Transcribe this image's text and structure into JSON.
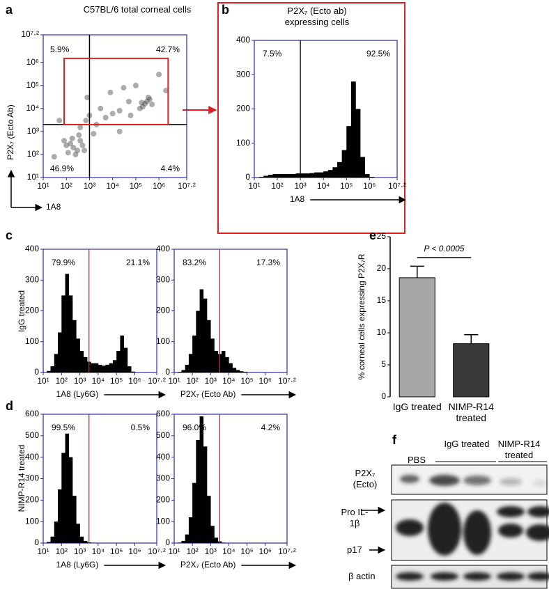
{
  "chart_data": [
    {
      "type": "scatter",
      "panel": "a",
      "title": "C57BL/6 total corneal cells",
      "xlabel": "1A8",
      "ylabel": "P2X₇ (Ecto Ab)",
      "x": [
        200,
        150,
        300,
        100,
        400,
        250,
        500,
        120,
        180,
        350,
        80,
        600,
        250000,
        300000,
        200000,
        400000,
        150000,
        350000,
        180000,
        500000,
        2000,
        5000,
        10000,
        20000,
        1000,
        3000,
        50000,
        8000,
        30000,
        100000,
        700,
        1500,
        400,
        60000,
        2000000,
        1000000,
        50,
        30,
        20000,
        800
      ],
      "y": [
        200,
        300,
        150,
        250,
        400,
        100,
        250,
        120,
        500,
        700,
        400,
        150,
        16000,
        20000,
        12000,
        25000,
        10000,
        30000,
        18000,
        15000,
        2000,
        4000,
        6000,
        8000,
        5000,
        10000,
        20000,
        50000,
        80000,
        100000,
        3000,
        800,
        1500,
        5000,
        60000,
        300000,
        3000,
        80,
        1000,
        30000
      ],
      "color": "#444444",
      "xscale": "log",
      "yscale": "log",
      "xlim": [
        10,
        15848932
      ],
      "ylim": [
        10,
        15848932
      ],
      "xticks": [
        {
          "value": 10,
          "label": "10¹"
        },
        {
          "value": 100,
          "label": "10²"
        },
        {
          "value": 1000,
          "label": "10³"
        },
        {
          "value": 10000,
          "label": "10⁴"
        },
        {
          "value": 100000,
          "label": "10⁵"
        },
        {
          "value": 1000000,
          "label": "10⁶"
        },
        {
          "value": 15848932,
          "label": "10⁷·²"
        }
      ],
      "yticks": [
        {
          "value": 10,
          "label": "10¹"
        },
        {
          "value": 100,
          "label": "10²"
        },
        {
          "value": 1000,
          "label": "10³"
        },
        {
          "value": 10000,
          "label": "10⁴"
        },
        {
          "value": 100000,
          "label": "10⁵"
        },
        {
          "value": 1000000,
          "label": "10⁶"
        },
        {
          "value": 15848932,
          "label": "10⁷·²"
        }
      ],
      "gates": {
        "x": 1000,
        "y": 2000,
        "color": "#000000"
      },
      "gate_box": {
        "x": [
          80,
          2500000
        ],
        "y": [
          2000,
          1500000
        ],
        "color": "#e02020"
      },
      "annotations": [
        "5.9%",
        "42.7%",
        "46.9%",
        "4.4%"
      ]
    },
    {
      "type": "histogram",
      "panel": "b",
      "title": "P2X₇ (Ecto ab) expressing cells",
      "xlabel": "1A8",
      "xscale": "log",
      "bins": [
        10,
        15.85,
        25.12,
        39.81,
        63.1,
        100,
        158.5,
        251.2,
        398.1,
        631,
        1000,
        1585,
        2512,
        3981,
        6310,
        10000,
        15849,
        25119,
        39811,
        63096,
        100000,
        158489,
        251189,
        398107,
        630957,
        1000000,
        1584893,
        2511886,
        3981072,
        6309573,
        10000000,
        15848932
      ],
      "values": [
        0,
        2,
        5,
        8,
        10,
        10,
        10,
        10,
        10,
        12,
        12,
        12,
        13,
        15,
        15,
        18,
        22,
        30,
        45,
        80,
        150,
        280,
        200,
        60,
        10,
        2,
        0,
        0,
        0,
        0,
        0
      ],
      "color": "#000000",
      "xlim": [
        10,
        15848932
      ],
      "ylim": [
        0,
        400
      ],
      "yticks": [
        0,
        100,
        200,
        300,
        400
      ],
      "xticks": [
        {
          "value": 10,
          "label": "10¹"
        },
        {
          "value": 100,
          "label": "10²"
        },
        {
          "value": 1000,
          "label": "10³"
        },
        {
          "value": 10000,
          "label": "10⁴"
        },
        {
          "value": 100000,
          "label": "10⁵"
        },
        {
          "value": 1000000,
          "label": "10⁶"
        },
        {
          "value": 15848932,
          "label": "10⁷·²"
        }
      ],
      "gate": 1000,
      "gate_color": "#000000",
      "annotations": [
        "7.5%",
        "92.5%"
      ]
    },
    {
      "type": "histogram",
      "panel": "c",
      "ylabel": "IgG treated",
      "xlabel": "1A8 (Ly6G)",
      "xscale": "log",
      "bins": [
        10,
        15.85,
        25.12,
        39.81,
        63.1,
        100,
        158.5,
        251.2,
        398.1,
        631,
        1000,
        1585,
        2512,
        3981,
        6310,
        10000,
        15849,
        25119,
        39811,
        63096,
        100000,
        158489,
        251189,
        398107,
        630957,
        1000000,
        1584893,
        2511886,
        3981072,
        6309573,
        10000000,
        15848932
      ],
      "values": [
        0,
        5,
        20,
        60,
        130,
        250,
        320,
        250,
        170,
        110,
        70,
        50,
        35,
        30,
        30,
        25,
        22,
        25,
        30,
        40,
        70,
        120,
        80,
        20,
        3,
        0,
        0,
        0,
        0,
        0,
        0
      ],
      "color": "#000000",
      "xlim": [
        10,
        15848932
      ],
      "ylim": [
        0,
        400
      ],
      "yticks": [
        0,
        100,
        200,
        300,
        400
      ],
      "xticks": [
        {
          "value": 10,
          "label": "10¹"
        },
        {
          "value": 100,
          "label": "10²"
        },
        {
          "value": 1000,
          "label": "10³"
        },
        {
          "value": 10000,
          "label": "10⁴"
        },
        {
          "value": 100000,
          "label": "10⁵"
        },
        {
          "value": 1000000,
          "label": "10⁶"
        },
        {
          "value": 15848932,
          "label": "10⁷·²"
        }
      ],
      "gate": 3162,
      "gate_color": "#e02020",
      "annotations": [
        "79.9%",
        "21.1%"
      ]
    },
    {
      "type": "histogram",
      "xlabel": "P2X₇ (Ecto Ab)",
      "xscale": "log",
      "bins": [
        10,
        15.85,
        25.12,
        39.81,
        63.1,
        100,
        158.5,
        251.2,
        398.1,
        631,
        1000,
        1585,
        2512,
        3981,
        6310,
        10000,
        15849,
        25119,
        39811,
        63096,
        100000,
        158489,
        251189,
        398107,
        630957,
        1000000,
        1584893,
        2511886,
        3981072,
        6309573,
        10000000,
        15848932
      ],
      "values": [
        0,
        2,
        8,
        25,
        60,
        120,
        200,
        270,
        240,
        170,
        110,
        70,
        60,
        70,
        50,
        30,
        15,
        8,
        4,
        2,
        0,
        0,
        0,
        0,
        0,
        0,
        0,
        0,
        0,
        0,
        0
      ],
      "color": "#000000",
      "xlim": [
        10,
        15848932
      ],
      "ylim": [
        0,
        400
      ],
      "yticks": [
        0,
        100,
        200,
        300,
        400
      ],
      "xticks": [
        {
          "value": 10,
          "label": "10¹"
        },
        {
          "value": 100,
          "label": "10²"
        },
        {
          "value": 1000,
          "label": "10³"
        },
        {
          "value": 10000,
          "label": "10⁴"
        },
        {
          "value": 100000,
          "label": "10⁵"
        },
        {
          "value": 1000000,
          "label": "10⁶"
        },
        {
          "value": 15848932,
          "label": "10⁷·²"
        }
      ],
      "gate": 3162,
      "gate_color": "#e02020",
      "annotations": [
        "83.2%",
        "17.3%"
      ]
    },
    {
      "type": "histogram",
      "panel": "d",
      "ylabel": "NIMP-R14 treated",
      "xlabel": "1A8 (Ly6G)",
      "xscale": "log",
      "bins": [
        10,
        15.85,
        25.12,
        39.81,
        63.1,
        100,
        158.5,
        251.2,
        398.1,
        631,
        1000,
        1585,
        2512,
        3981,
        6310,
        10000,
        15849,
        25119,
        39811,
        63096,
        100000,
        158489,
        251189,
        398107,
        630957,
        1000000,
        1584893,
        2511886,
        3981072,
        6309573,
        10000000,
        15848932
      ],
      "values": [
        0,
        5,
        30,
        100,
        250,
        420,
        510,
        400,
        220,
        90,
        30,
        10,
        3,
        1,
        0,
        0,
        0,
        0,
        0,
        0,
        0,
        0,
        0,
        0,
        0,
        0,
        0,
        0,
        0,
        0,
        0
      ],
      "color": "#000000",
      "xlim": [
        10,
        15848932
      ],
      "ylim": [
        0,
        600
      ],
      "yticks": [
        0,
        100,
        200,
        300,
        400,
        500,
        600
      ],
      "xticks": [
        {
          "value": 10,
          "label": "10¹"
        },
        {
          "value": 100,
          "label": "10²"
        },
        {
          "value": 1000,
          "label": "10³"
        },
        {
          "value": 10000,
          "label": "10⁴"
        },
        {
          "value": 100000,
          "label": "10⁵"
        },
        {
          "value": 1000000,
          "label": "10⁶"
        },
        {
          "value": 15848932,
          "label": "10⁷·²"
        }
      ],
      "gate": 3162,
      "gate_color": "#e02020",
      "annotations": [
        "99.5%",
        "0.5%"
      ]
    },
    {
      "type": "histogram",
      "xlabel": "P2X₇ (Ecto Ab)",
      "xscale": "log",
      "bins": [
        10,
        15.85,
        25.12,
        39.81,
        63.1,
        100,
        158.5,
        251.2,
        398.1,
        631,
        1000,
        1585,
        2512,
        3981,
        6310,
        10000,
        15849,
        25119,
        39811,
        63096,
        100000,
        158489,
        251189,
        398107,
        630957,
        1000000,
        1584893,
        2511886,
        3981072,
        6309573,
        10000000,
        15848932
      ],
      "values": [
        0,
        2,
        10,
        40,
        120,
        280,
        480,
        590,
        450,
        220,
        80,
        25,
        8,
        2,
        0,
        0,
        0,
        0,
        0,
        0,
        0,
        0,
        0,
        0,
        0,
        0,
        0,
        0,
        0,
        0,
        0
      ],
      "color": "#000000",
      "xlim": [
        10,
        15848932
      ],
      "ylim": [
        0,
        600
      ],
      "yticks": [
        0,
        100,
        200,
        300,
        400,
        500,
        600
      ],
      "xticks": [
        {
          "value": 10,
          "label": "10¹"
        },
        {
          "value": 100,
          "label": "10²"
        },
        {
          "value": 1000,
          "label": "10³"
        },
        {
          "value": 10000,
          "label": "10⁴"
        },
        {
          "value": 100000,
          "label": "10⁵"
        },
        {
          "value": 1000000,
          "label": "10⁶"
        },
        {
          "value": 15848932,
          "label": "10⁷·²"
        }
      ],
      "gate": 3162,
      "gate_color": "#e02020",
      "annotations": [
        "96.0%",
        "4.2%"
      ]
    },
    {
      "type": "bar",
      "panel": "e",
      "ylabel": "% corneal cells expressing P2X₇R",
      "categories": [
        "IgG treated",
        "NIMP-R14 treated"
      ],
      "values": [
        18.6,
        8.3
      ],
      "errors": [
        1.8,
        1.4
      ],
      "colors": [
        "#a6a6a6",
        "#3a3a3a"
      ],
      "ylim": [
        0,
        25
      ],
      "yticks": [
        0,
        5,
        10,
        15,
        20,
        25
      ],
      "annotation": "P < 0.0005"
    }
  ],
  "blot": {
    "panel": "f",
    "lanes": [
      "PBS",
      "IgG treated",
      "NIMP-R14 treated"
    ],
    "rows": [
      "P2X₇ (Ecto)",
      "Pro IL-1β",
      "p17",
      "β actin"
    ]
  }
}
